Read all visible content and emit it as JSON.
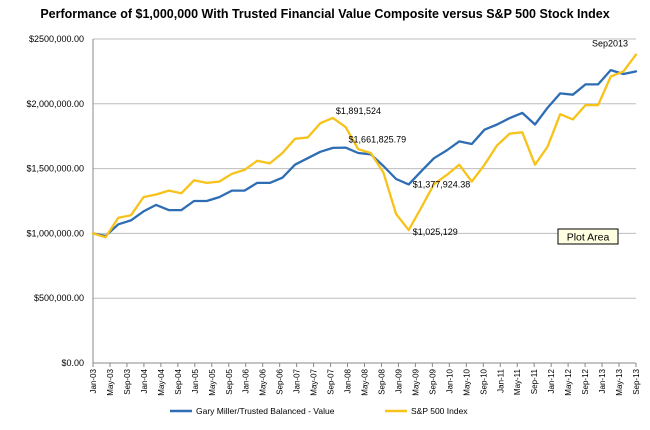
{
  "chart_data": {
    "type": "line",
    "title": "Performance of $1,000,000 With Trusted Financial Value Composite versus S&P 500 Stock Index",
    "xlabel": "",
    "ylabel": "",
    "ylim": [
      0,
      2500000
    ],
    "y_ticks": [
      "$0.00",
      "$500,000.00",
      "$1,000,000.00",
      "$1,500,000.00",
      "$2,000,000.00",
      "$2500,000.00"
    ],
    "grid": true,
    "legend_position": "bottom",
    "x_tick_labels": [
      "Jan-03",
      "May-03",
      "Sep-03",
      "Jan-04",
      "May-04",
      "Sep-04",
      "Jan-05",
      "May-05",
      "Sep-05",
      "Jan-06",
      "May-06",
      "Sep-06",
      "Jan-07",
      "May-07",
      "Sep-07",
      "Jan-08",
      "May-08",
      "Sep-08",
      "Jan-09",
      "May-09",
      "Sep-09",
      "Jan-10",
      "May-10",
      "Sep-10",
      "Jan-11",
      "May-11",
      "Sep-11",
      "Jan-12",
      "May-12",
      "Sep-12",
      "Jan-13",
      "May-13",
      "Sep-13"
    ],
    "series": [
      {
        "name": "Gary Miller/Trusted Balanced - Value",
        "color": "#2e6db4",
        "values": [
          1000000,
          980000,
          1070000,
          1100000,
          1170000,
          1220000,
          1180000,
          1180000,
          1250000,
          1250000,
          1280000,
          1330000,
          1330000,
          1390000,
          1390000,
          1430000,
          1530000,
          1580000,
          1630000,
          1660000,
          1661826,
          1620000,
          1610000,
          1520000,
          1420000,
          1377924,
          1480000,
          1580000,
          1640000,
          1710000,
          1690000,
          1800000,
          1840000,
          1890000,
          1930000,
          1840000,
          1970000,
          2080000,
          2070000,
          2150000,
          2150000,
          2260000,
          2230000,
          2250000
        ]
      },
      {
        "name": "S&P 500 Index",
        "color": "#f7c21a",
        "values": [
          1000000,
          970000,
          1120000,
          1140000,
          1280000,
          1300000,
          1330000,
          1310000,
          1410000,
          1390000,
          1400000,
          1460000,
          1490000,
          1560000,
          1540000,
          1620000,
          1730000,
          1740000,
          1850000,
          1891524,
          1820000,
          1650000,
          1620000,
          1470000,
          1150000,
          1025129,
          1200000,
          1380000,
          1450000,
          1530000,
          1400000,
          1530000,
          1680000,
          1770000,
          1780000,
          1530000,
          1670000,
          1920000,
          1880000,
          1990000,
          1990000,
          2210000,
          2250000,
          2380000
        ]
      }
    ],
    "annotations": [
      {
        "text": "$1,891,524",
        "series": 1,
        "index": 19
      },
      {
        "text": "$1,661,825.79",
        "series": 0,
        "index": 20
      },
      {
        "text": "$1,377,924.38",
        "series": 0,
        "index": 25
      },
      {
        "text": "$1,025,129",
        "series": 1,
        "index": 25
      },
      {
        "text": "Sep2013",
        "series": 1,
        "index": 43
      }
    ],
    "plot_area_label": "Plot Area"
  }
}
